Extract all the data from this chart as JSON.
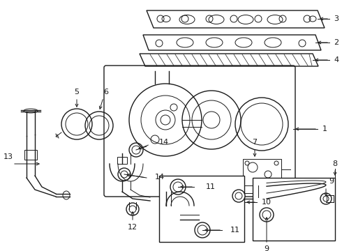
{
  "bg_color": "#ffffff",
  "line_color": "#1a1a1a",
  "label_color": "#000000",
  "figsize": [
    4.9,
    3.6
  ],
  "dpi": 100,
  "xlim": [
    0,
    490
  ],
  "ylim": [
    0,
    360
  ]
}
